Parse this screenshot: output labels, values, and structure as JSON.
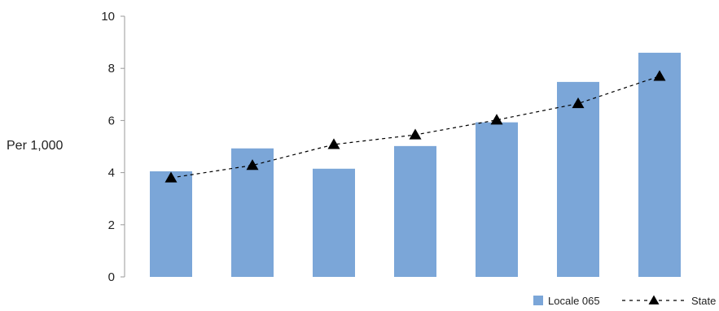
{
  "chart_data": {
    "type": "bar",
    "ylabel": "Per 1,000",
    "ylim": [
      0,
      10
    ],
    "yticks": [
      0,
      2,
      4,
      6,
      8,
      10
    ],
    "grid": false,
    "legend_position": "bottom-right",
    "categories": [
      "",
      "",
      "",
      "",
      "",
      "",
      ""
    ],
    "series": [
      {
        "name": "Locale 065",
        "kind": "bar",
        "color": "#7ba6d8",
        "values": [
          4.05,
          4.93,
          4.15,
          5.02,
          5.93,
          7.48,
          8.6
        ]
      },
      {
        "name": "State",
        "kind": "line",
        "line_style": "dashed",
        "marker": "triangle",
        "color": "#000000",
        "values": [
          3.8,
          4.28,
          5.08,
          5.45,
          6.02,
          6.65,
          7.7
        ]
      }
    ]
  }
}
